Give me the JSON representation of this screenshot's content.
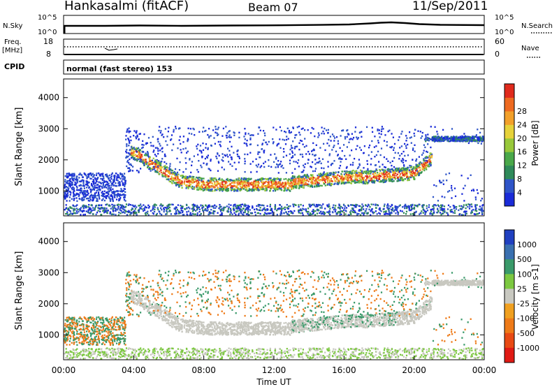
{
  "header": {
    "station": "Hankasalmi (fitACF)",
    "beam": "Beam 07",
    "date": "11/Sep/2011"
  },
  "top_panels": {
    "nsky_label": "N.Sky",
    "nsky_tick_hi": "10^5",
    "nsky_tick_lo": "10^0",
    "nsearch_label": "N.Search",
    "nsearch_tick_hi": "10^5",
    "nsearch_tick_lo": "10^0",
    "freq_label_1": "Freq.",
    "freq_label_2": "[MHz]",
    "freq_tick_hi": "18",
    "freq_tick_lo": "8",
    "nave_label": "Nave",
    "nave_tick_hi": "60",
    "nave_tick_lo": "0",
    "cpid_label": "CPID",
    "cpid_value": "normal (fast stereo) 153"
  },
  "chart_data": [
    {
      "type": "heatmap",
      "panel": "power",
      "ylabel": "Slant Range [km]",
      "yticks": [
        "1000",
        "2000",
        "3000",
        "4000"
      ],
      "ylim": [
        200,
        4600
      ],
      "xlim_hours": [
        0,
        24
      ],
      "colorbar": {
        "label": "Power [dB]",
        "ticks": [
          "4",
          "8",
          "12",
          "16",
          "20",
          "24",
          "28"
        ],
        "colors": [
          "#1a2bd8",
          "#2f55c8",
          "#2f8a5a",
          "#4aa84a",
          "#98c83a",
          "#e6d23a",
          "#f2a02a",
          "#ee6a20",
          "#e02a1c"
        ]
      }
    },
    {
      "type": "heatmap",
      "panel": "velocity",
      "ylabel": "Slant Range [km]",
      "yticks": [
        "1000",
        "2000",
        "3000",
        "4000"
      ],
      "ylim": [
        200,
        4600
      ],
      "xlim_hours": [
        0,
        24
      ],
      "colorbar": {
        "label": "Velocity [m s-1]",
        "ticks": [
          "1000",
          "500",
          "100",
          "25",
          "-25",
          "-100",
          "-500",
          "-1000"
        ],
        "colors": [
          "#2040c0",
          "#3a70b0",
          "#3a9a6a",
          "#7cc840",
          "#c8c8c0",
          "#f0a020",
          "#ee7a18",
          "#e84a14",
          "#e01a14"
        ]
      }
    }
  ],
  "time_axis": {
    "label": "Time UT",
    "ticks": [
      "00:00",
      "04:00",
      "08:00",
      "12:00",
      "16:00",
      "20:00",
      "00:00"
    ]
  }
}
